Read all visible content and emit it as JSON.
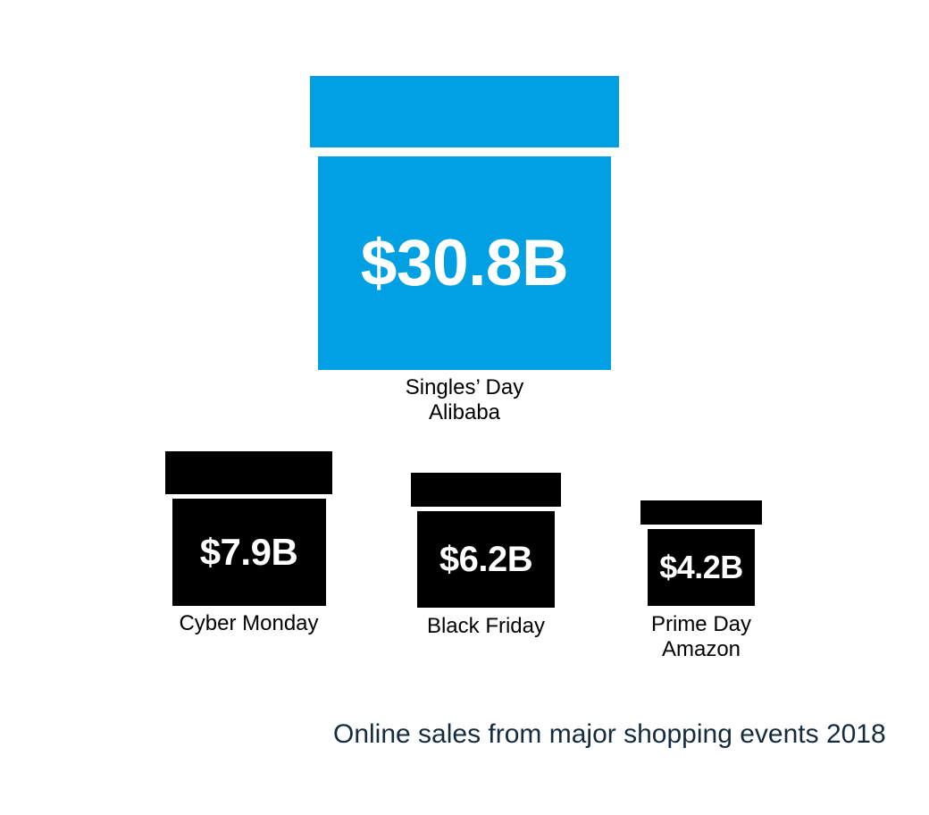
{
  "chart_data": {
    "type": "bar",
    "style": "pictorial area-proportional gift boxes",
    "title": "Online sales from major shopping events 2018",
    "categories": [
      "Singles' Day Alibaba",
      "Cyber Monday",
      "Black Friday",
      "Prime Day Amazon"
    ],
    "values": [
      30.8,
      7.9,
      6.2,
      4.2
    ],
    "value_labels": [
      "$30.8B",
      "$7.9B",
      "$6.2B",
      "$4.2B"
    ],
    "unit": "billion USD",
    "legend": "none",
    "axes": "none",
    "colors": {
      "highlight": "#00a0e2",
      "default": "#000000"
    }
  },
  "boxes": [
    {
      "value_label": "$30.8B",
      "label_line1": "Singles’ Day",
      "label_line2": "Alibaba",
      "color": "#00a0e2"
    },
    {
      "value_label": "$7.9B",
      "label_line1": "Cyber Monday",
      "color": "#000000"
    },
    {
      "value_label": "$6.2B",
      "label_line1": "Black Friday",
      "color": "#000000"
    },
    {
      "value_label": "$4.2B",
      "label_line1": "Prime Day",
      "label_line2": "Amazon",
      "color": "#000000"
    }
  ],
  "caption": {
    "text": "Online sales from major shopping events 2018",
    "color": "#142c3e"
  }
}
